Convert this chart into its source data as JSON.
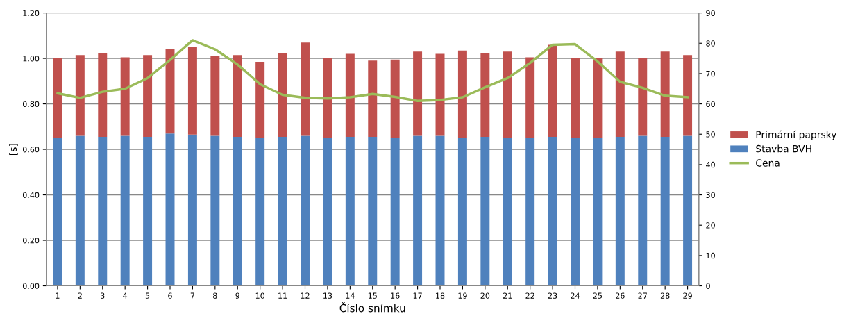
{
  "chart_data": {
    "type": "bar",
    "stacked": true,
    "xlabel": "Číslo snímku",
    "ylabel": "[s]",
    "categories": [
      "1",
      "2",
      "3",
      "4",
      "5",
      "6",
      "7",
      "8",
      "9",
      "10",
      "11",
      "12",
      "13",
      "14",
      "15",
      "16",
      "17",
      "18",
      "19",
      "20",
      "21",
      "22",
      "23",
      "24",
      "25",
      "26",
      "27",
      "28",
      "29"
    ],
    "series": [
      {
        "name": "Stavba BVH",
        "color": "#4f81bd",
        "values": [
          0.65,
          0.66,
          0.655,
          0.66,
          0.655,
          0.67,
          0.665,
          0.66,
          0.655,
          0.65,
          0.655,
          0.66,
          0.65,
          0.655,
          0.655,
          0.65,
          0.66,
          0.66,
          0.65,
          0.655,
          0.65,
          0.65,
          0.655,
          0.65,
          0.65,
          0.655,
          0.66,
          0.655,
          0.66
        ]
      },
      {
        "name": "Primární paprsky",
        "color": "#c0504d",
        "values": [
          0.35,
          0.355,
          0.37,
          0.345,
          0.36,
          0.37,
          0.385,
          0.35,
          0.36,
          0.335,
          0.37,
          0.41,
          0.35,
          0.365,
          0.335,
          0.345,
          0.37,
          0.36,
          0.385,
          0.37,
          0.38,
          0.355,
          0.405,
          0.35,
          0.35,
          0.375,
          0.34,
          0.375,
          0.355
        ]
      },
      {
        "name": "Cena",
        "type": "line",
        "axis": "y2",
        "color": "#9bbb59",
        "values": [
          63.5,
          62,
          64,
          65,
          68.5,
          74.5,
          81,
          78,
          73,
          66.5,
          63,
          62,
          61.8,
          62.2,
          63.3,
          62.3,
          61,
          61.3,
          62.2,
          65.5,
          68.5,
          73.5,
          79.5,
          79.7,
          74,
          67.3,
          65.3,
          62.7,
          62.2
        ]
      }
    ],
    "ylim": [
      0,
      1.2
    ],
    "yticks": [
      {
        "value": 0,
        "label": "0.00"
      },
      {
        "value": 0.2,
        "label": "0.20"
      },
      {
        "value": 0.4,
        "label": "0.40"
      },
      {
        "value": 0.6,
        "label": "0.60"
      },
      {
        "value": 0.8,
        "label": "0.80"
      },
      {
        "value": 1.0,
        "label": "1.00"
      },
      {
        "value": 1.2,
        "label": "1.20"
      }
    ],
    "y2lim": [
      0,
      90
    ],
    "y2ticks": [
      0,
      10,
      20,
      30,
      40,
      50,
      60,
      70,
      80,
      90
    ],
    "grid": "y",
    "legend": "right",
    "marker": "none",
    "line_style": "solid"
  }
}
